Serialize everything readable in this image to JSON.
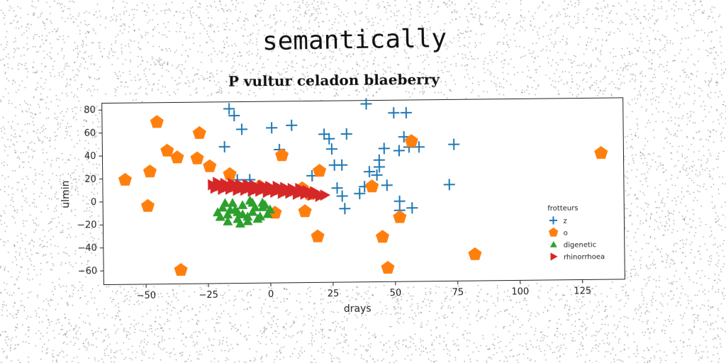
{
  "header": {
    "title": "semantically"
  },
  "chart_data": {
    "type": "scatter",
    "title": "P vultur celadon blaeberry",
    "xlabel": "drays",
    "ylabel": "ulmin",
    "xlim": [
      -67,
      142
    ],
    "ylim": [
      -72,
      86
    ],
    "xticks": [
      -50,
      -25,
      0,
      25,
      50,
      75,
      100,
      125
    ],
    "yticks": [
      -60,
      -40,
      -20,
      0,
      20,
      40,
      60,
      80
    ],
    "grid": false,
    "legend": {
      "title": "frotteurs",
      "placement": "lower-right"
    },
    "series": [
      {
        "name": "z",
        "marker": "plus",
        "color": "#1f77b4",
        "points": [
          [
            -16,
            80
          ],
          [
            -14,
            74
          ],
          [
            -11,
            62
          ],
          [
            -18,
            47
          ],
          [
            1,
            63
          ],
          [
            9,
            65
          ],
          [
            4,
            44
          ],
          [
            -8,
            18
          ],
          [
            -13,
            18
          ],
          [
            17,
            21
          ],
          [
            22,
            57
          ],
          [
            24,
            53
          ],
          [
            25,
            44
          ],
          [
            26,
            30
          ],
          [
            29,
            30
          ],
          [
            31,
            57
          ],
          [
            39,
            83
          ],
          [
            44,
            28
          ],
          [
            44,
            34
          ],
          [
            46,
            44
          ],
          [
            50,
            75
          ],
          [
            55,
            75
          ],
          [
            54,
            54
          ],
          [
            52,
            42
          ],
          [
            56,
            45
          ],
          [
            60,
            45
          ],
          [
            74,
            47
          ],
          [
            72,
            12
          ],
          [
            27,
            10
          ],
          [
            29,
            3
          ],
          [
            30,
            -8
          ],
          [
            36,
            5
          ],
          [
            40,
            24
          ],
          [
            43,
            21
          ],
          [
            47,
            12
          ],
          [
            52,
            -2
          ],
          [
            52,
            -10
          ],
          [
            57,
            -8
          ],
          [
            38,
            11
          ]
        ]
      },
      {
        "name": "o",
        "marker": "pentagon",
        "color": "#ff7f0e",
        "points": [
          [
            -45,
            69
          ],
          [
            -28,
            59
          ],
          [
            -41,
            44
          ],
          [
            -37,
            38
          ],
          [
            -29,
            37
          ],
          [
            -24,
            30
          ],
          [
            -16,
            23
          ],
          [
            -48,
            26
          ],
          [
            -58,
            19
          ],
          [
            -49,
            -4
          ],
          [
            -36,
            -60
          ],
          [
            5,
            39
          ],
          [
            20,
            25
          ],
          [
            -4,
            12
          ],
          [
            -1,
            10
          ],
          [
            13,
            10
          ],
          [
            16,
            5
          ],
          [
            41,
            11
          ],
          [
            57,
            50
          ],
          [
            2,
            -11
          ],
          [
            14,
            -10
          ],
          [
            19,
            -32
          ],
          [
            45,
            -33
          ],
          [
            47,
            -60
          ],
          [
            52,
            -16
          ],
          [
            82,
            -49
          ],
          [
            133,
            38
          ]
        ]
      },
      {
        "name": "digenetic",
        "marker": "triangle",
        "color": "#2ca02c",
        "points": [
          [
            -20,
            -14
          ],
          [
            -17,
            -12
          ],
          [
            -14,
            -8
          ],
          [
            -11,
            -4
          ],
          [
            -7,
            -2
          ],
          [
            -3,
            -6
          ],
          [
            -1,
            -12
          ],
          [
            -5,
            -16
          ],
          [
            -9,
            -18
          ],
          [
            -13,
            -16
          ],
          [
            -17,
            -18
          ],
          [
            -19,
            -6
          ],
          [
            -15,
            -2
          ],
          [
            -11,
            -12
          ],
          [
            -7,
            -10
          ],
          [
            -3,
            -2
          ],
          [
            0,
            -8
          ],
          [
            -21,
            -10
          ],
          [
            -12,
            -20
          ],
          [
            -6,
            -6
          ],
          [
            -16,
            -8
          ],
          [
            -9,
            -14
          ],
          [
            -18,
            -2
          ],
          [
            -4,
            -14
          ],
          [
            -8,
            0
          ],
          [
            -13,
            -10
          ],
          [
            -2,
            -4
          ]
        ]
      },
      {
        "name": "rhinorrhoea",
        "marker": "triangle-right",
        "color": "#d62728",
        "points": [
          [
            -23,
            14
          ],
          [
            -20,
            13
          ],
          [
            -17,
            12
          ],
          [
            -14,
            12
          ],
          [
            -11,
            11
          ],
          [
            -8,
            11
          ],
          [
            -5,
            10
          ],
          [
            -2,
            10
          ],
          [
            1,
            9
          ],
          [
            4,
            9
          ],
          [
            7,
            8
          ],
          [
            10,
            8
          ],
          [
            13,
            7
          ],
          [
            16,
            6
          ],
          [
            19,
            5
          ],
          [
            22,
            4
          ],
          [
            -22,
            11
          ],
          [
            -19,
            10
          ],
          [
            -16,
            10
          ],
          [
            -13,
            9
          ],
          [
            -10,
            9
          ],
          [
            -7,
            8
          ],
          [
            -4,
            8
          ],
          [
            -1,
            7
          ],
          [
            2,
            7
          ],
          [
            5,
            6
          ],
          [
            8,
            6
          ],
          [
            11,
            5
          ],
          [
            14,
            5
          ],
          [
            17,
            4
          ],
          [
            20,
            3
          ],
          [
            -21,
            16
          ],
          [
            -18,
            15
          ],
          [
            -15,
            15
          ],
          [
            -12,
            14
          ],
          [
            -9,
            14
          ],
          [
            -6,
            13
          ],
          [
            -3,
            13
          ],
          [
            0,
            12
          ],
          [
            3,
            12
          ],
          [
            6,
            11
          ],
          [
            9,
            10
          ],
          [
            12,
            10
          ],
          [
            15,
            8
          ],
          [
            18,
            7
          ]
        ]
      }
    ]
  }
}
